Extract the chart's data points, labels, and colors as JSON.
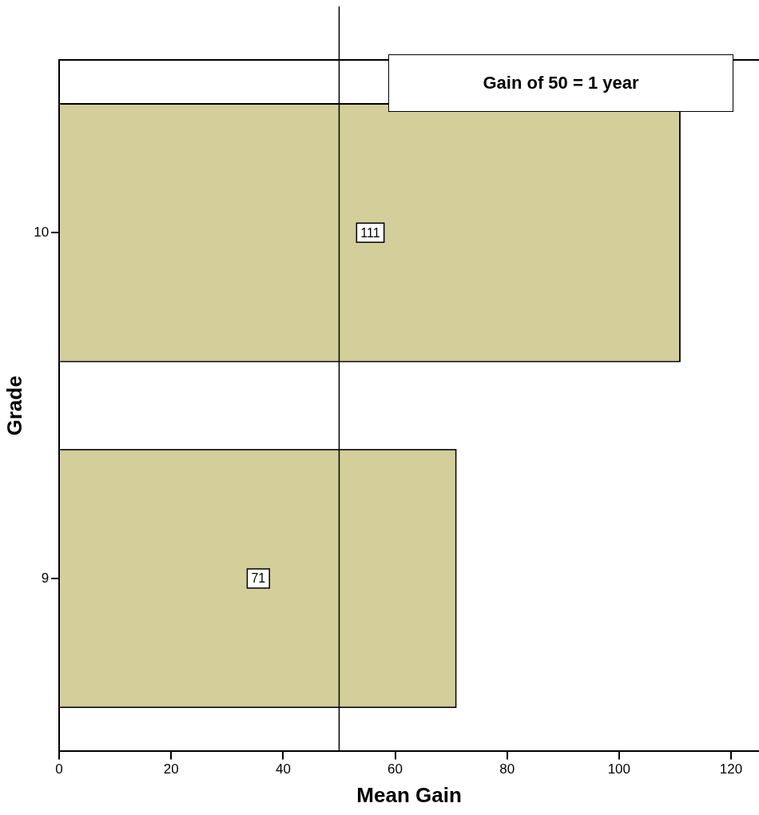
{
  "chart_data": {
    "type": "bar",
    "orientation": "horizontal",
    "xlabel": "Mean Gain",
    "ylabel": "Grade",
    "categories": [
      "10",
      "9"
    ],
    "values": [
      111,
      71
    ],
    "color": "#d3ce9a",
    "xlim": [
      0,
      125
    ],
    "xticks": [
      0,
      20,
      40,
      60,
      80,
      100,
      120
    ],
    "ref_lines": [
      {
        "axis": "x",
        "value": 50,
        "label": "Gain of 50 = 1 year"
      }
    ],
    "data_labels": true,
    "grid": false,
    "legend": false
  }
}
